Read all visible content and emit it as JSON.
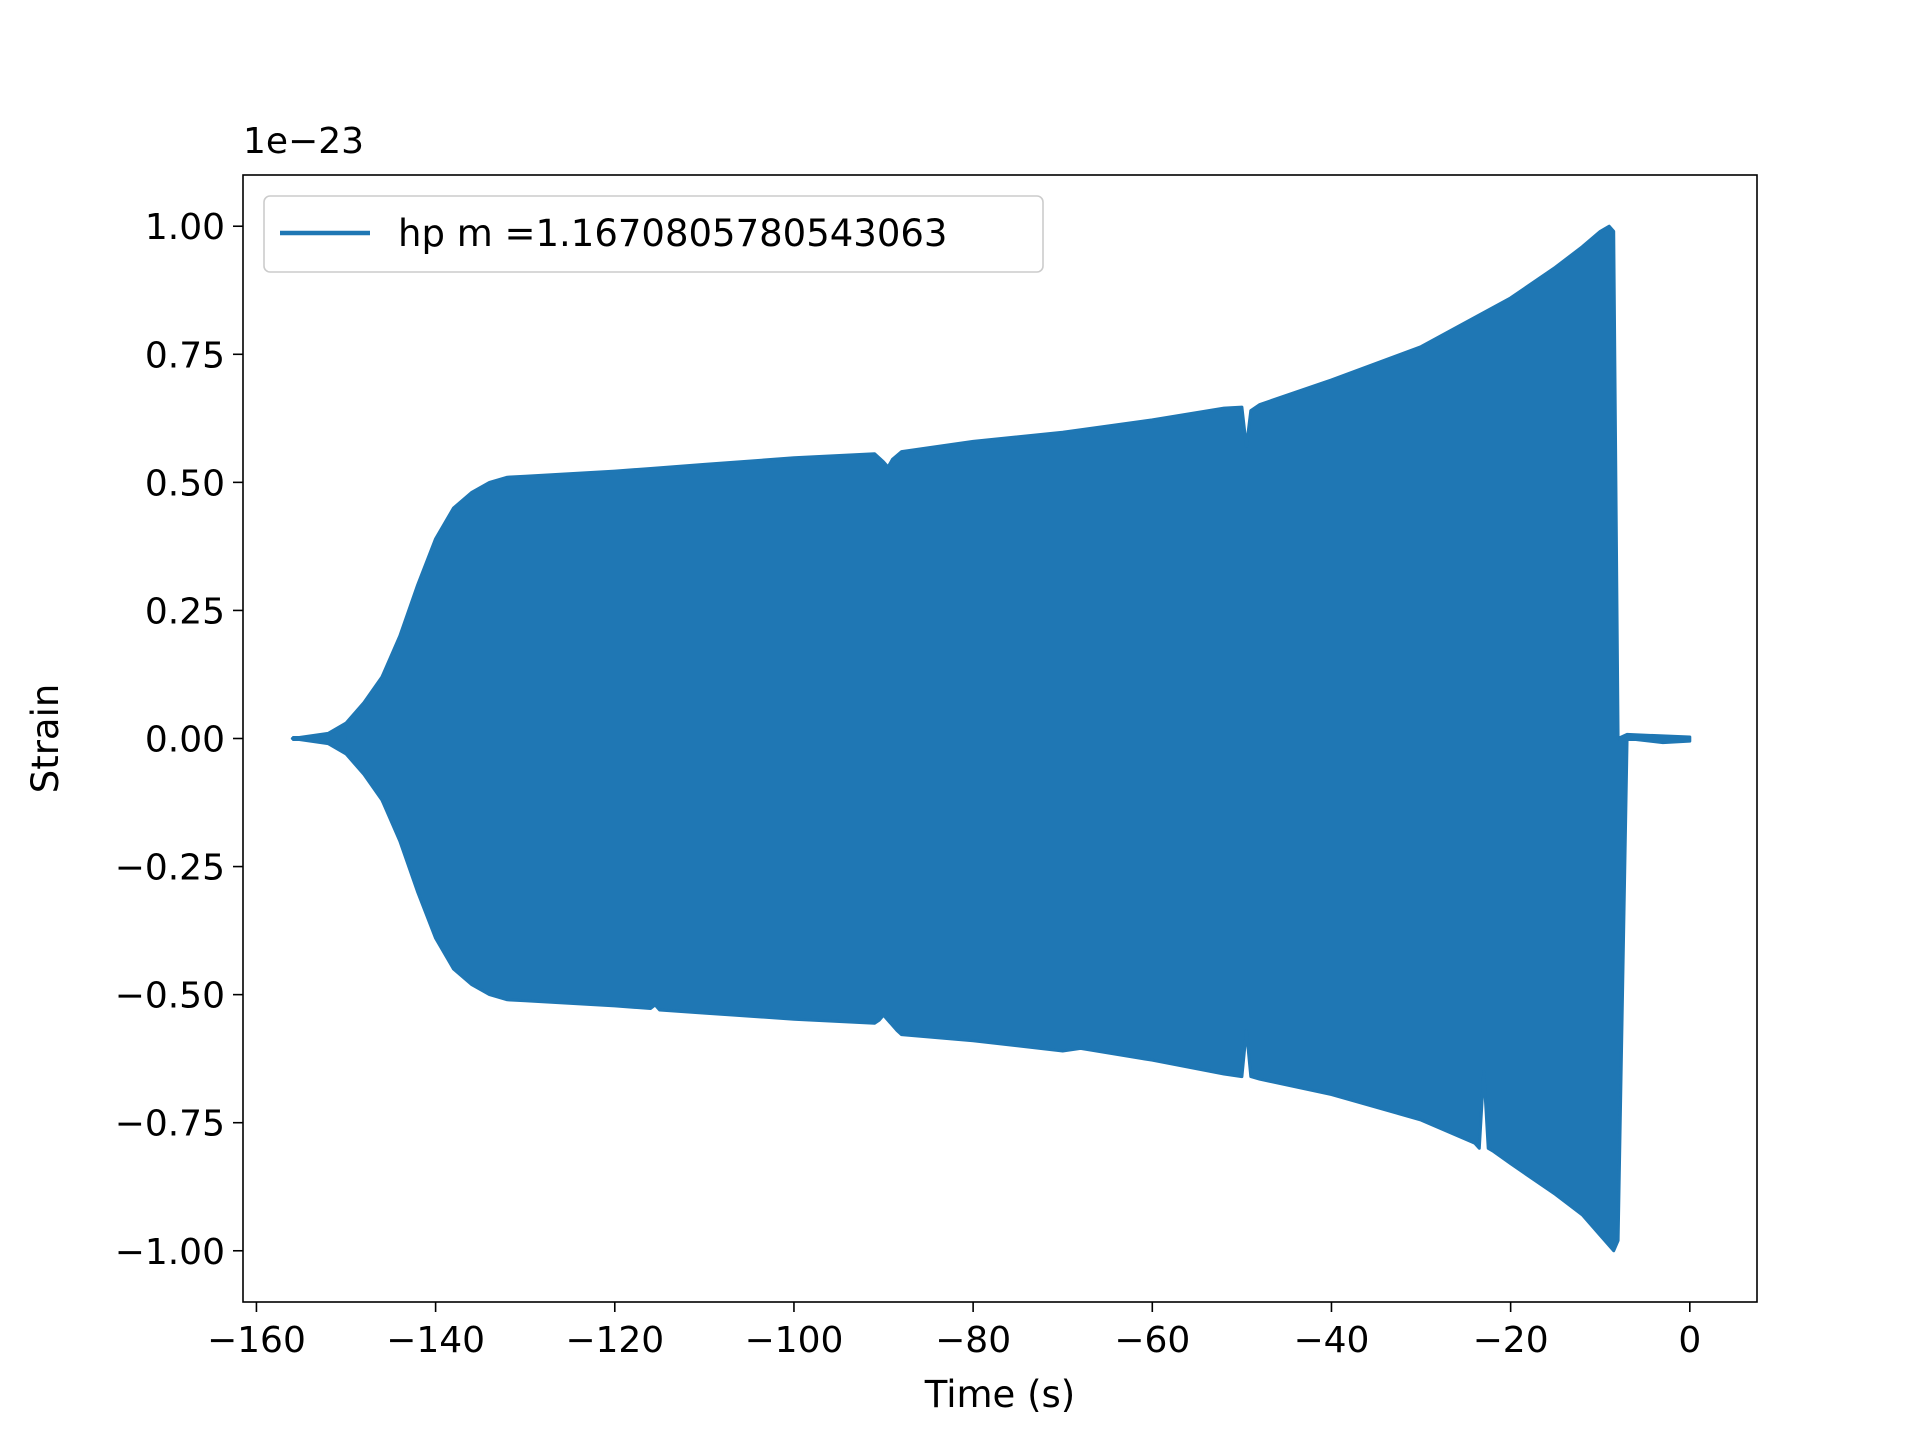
{
  "chart_data": {
    "type": "line",
    "title": "",
    "xlabel": "Time (s)",
    "ylabel": "Strain",
    "offset_label": "1e−23",
    "xlim": [
      -161.5,
      7.5
    ],
    "ylim": [
      -1.1,
      1.1
    ],
    "x_ticks": [
      -160,
      -140,
      -120,
      -100,
      -80,
      -60,
      -40,
      -20,
      0
    ],
    "x_tick_labels": [
      "−160",
      "−140",
      "−120",
      "−100",
      "−80",
      "−60",
      "−40",
      "−20",
      "0"
    ],
    "y_ticks": [
      1.0,
      0.75,
      0.5,
      0.25,
      0.0,
      -0.25,
      -0.5,
      -0.75,
      -1.0
    ],
    "y_tick_labels": [
      "1.00",
      "0.75",
      "0.50",
      "0.25",
      "0.00",
      "−0.25",
      "−0.50",
      "−0.75",
      "−1.00"
    ],
    "grid": false,
    "legend_position": "top-left",
    "series": [
      {
        "name": "hp m =1.1670805780543063",
        "color": "#1f77b4",
        "envelope_upper": {
          "x": [
            -156,
            -152,
            -150,
            -148,
            -146,
            -144,
            -142,
            -140,
            -138,
            -136,
            -134,
            -132,
            -130,
            -120,
            -116,
            -110,
            -100,
            -91,
            -90,
            -89.5,
            -89,
            -88,
            -80,
            -70,
            -60,
            -52,
            -50,
            -49.5,
            -49,
            -48,
            -40,
            -30,
            -20,
            -15,
            -12,
            -10,
            -9,
            -8.5,
            -8.0,
            -7.0,
            -3,
            0
          ],
          "y": [
            0.0,
            0.01,
            0.03,
            0.07,
            0.12,
            0.2,
            0.3,
            0.39,
            0.45,
            0.48,
            0.5,
            0.51,
            0.512,
            0.522,
            0.527,
            0.535,
            0.548,
            0.556,
            0.54,
            0.53,
            0.545,
            0.56,
            0.58,
            0.598,
            0.622,
            0.645,
            0.647,
            0.57,
            0.64,
            0.652,
            0.7,
            0.765,
            0.86,
            0.92,
            0.96,
            0.99,
            1.0,
            0.99,
            0.0,
            0.008,
            0.005,
            0.003
          ]
        },
        "envelope_lower": {
          "x": [
            -156,
            -152,
            -150,
            -148,
            -146,
            -144,
            -142,
            -140,
            -138,
            -136,
            -134,
            -132,
            -130,
            -120,
            -116,
            -115.5,
            -115,
            -110,
            -100,
            -91,
            -90.5,
            -90,
            -89,
            -88.5,
            -88,
            -80,
            -70,
            -68,
            -60,
            -52,
            -50,
            -49.5,
            -49,
            -48,
            -40,
            -30,
            -24,
            -23.5,
            -23.0,
            -22.5,
            -22,
            -20,
            -15,
            -12,
            -10,
            -9,
            -8.5,
            -8.0,
            -7.0,
            -3,
            0
          ],
          "y": [
            0.0,
            -0.01,
            -0.03,
            -0.07,
            -0.12,
            -0.2,
            -0.3,
            -0.39,
            -0.45,
            -0.48,
            -0.5,
            -0.51,
            -0.512,
            -0.522,
            -0.527,
            -0.52,
            -0.53,
            -0.536,
            -0.548,
            -0.556,
            -0.55,
            -0.54,
            -0.56,
            -0.57,
            -0.578,
            -0.59,
            -0.61,
            -0.605,
            -0.628,
            -0.655,
            -0.66,
            -0.57,
            -0.66,
            -0.665,
            -0.695,
            -0.745,
            -0.79,
            -0.8,
            -0.65,
            -0.8,
            -0.805,
            -0.83,
            -0.89,
            -0.93,
            -0.97,
            -0.99,
            -1.0,
            -0.98,
            -0.0,
            -0.008,
            -0.005
          ]
        }
      }
    ]
  }
}
